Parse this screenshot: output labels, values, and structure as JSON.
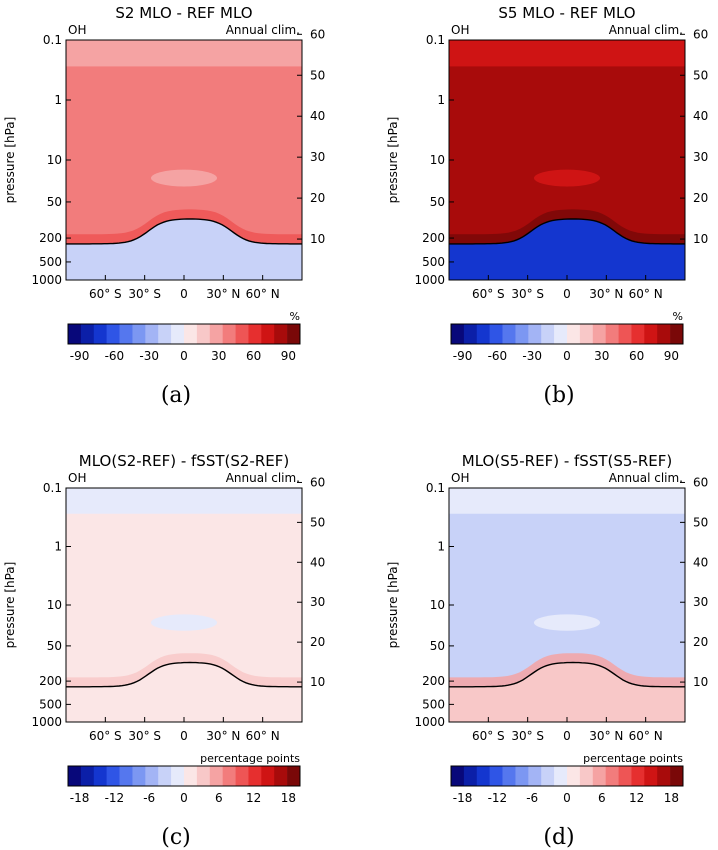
{
  "chart_data": [
    {
      "type": "heatmap",
      "panel_label": "(a)",
      "title": "S2 MLO - REF MLO",
      "species": "OH",
      "period": "Annual clim.",
      "ylabel": "pressure [hPa]",
      "x_ticks": [
        "60° S",
        "30° S",
        "0",
        "30° N",
        "60° N"
      ],
      "y_ticks": [
        "0.1",
        "1",
        "10",
        "50",
        "200",
        "500",
        "1000"
      ],
      "y2_ticks": [
        "60",
        "50",
        "40",
        "30",
        "20",
        "10"
      ],
      "colorbar": {
        "unit": "%",
        "range": [
          -100,
          100
        ],
        "ticks": [
          "-90",
          "-60",
          "-30",
          "0",
          "30",
          "60",
          "90"
        ]
      },
      "field": {
        "strat_level": 3,
        "upper_strat_level": 2,
        "lower_strat_band_level": 4,
        "trop_level": -2,
        "scale": 100
      }
    },
    {
      "type": "heatmap",
      "panel_label": "(b)",
      "title": "S5 MLO - REF MLO",
      "species": "OH",
      "period": "Annual clim.",
      "ylabel": "pressure [hPa]",
      "x_ticks": [
        "60° S",
        "30° S",
        "0",
        "30° N",
        "60° N"
      ],
      "y_ticks": [
        "0.1",
        "1",
        "10",
        "50",
        "200",
        "500",
        "1000"
      ],
      "y2_ticks": [
        "60",
        "50",
        "40",
        "30",
        "20",
        "10"
      ],
      "colorbar": {
        "unit": "%",
        "range": [
          -100,
          100
        ],
        "ticks": [
          "-90",
          "-60",
          "-30",
          "0",
          "30",
          "60",
          "90"
        ]
      },
      "field": {
        "strat_level": 7,
        "upper_strat_level": 6,
        "lower_strat_band_level": 8,
        "trop_level": -7,
        "scale": 100
      }
    },
    {
      "type": "heatmap",
      "panel_label": "(c)",
      "title": "MLO(S2-REF) - fSST(S2-REF)",
      "species": "OH",
      "period": "Annual clim.",
      "ylabel": "pressure [hPa]",
      "x_ticks": [
        "60° S",
        "30° S",
        "0",
        "30° N",
        "60° N"
      ],
      "y_ticks": [
        "0.1",
        "1",
        "10",
        "50",
        "200",
        "500",
        "1000"
      ],
      "y2_ticks": [
        "60",
        "50",
        "40",
        "30",
        "20",
        "10"
      ],
      "colorbar": {
        "unit": "percentage points",
        "range": [
          -20,
          20
        ],
        "ticks": [
          "-18",
          "-12",
          "-6",
          "0",
          "6",
          "12",
          "18"
        ]
      },
      "field": {
        "strat_level": 0,
        "upper_strat_level": -1,
        "lower_strat_band_level": 1,
        "trop_level": 0,
        "scale": 20
      }
    },
    {
      "type": "heatmap",
      "panel_label": "(d)",
      "title": "MLO(S5-REF) - fSST(S5-REF)",
      "species": "OH",
      "period": "Annual clim.",
      "ylabel": "pressure [hPa]",
      "x_ticks": [
        "60° S",
        "30° S",
        "0",
        "30° N",
        "60° N"
      ],
      "y_ticks": [
        "0.1",
        "1",
        "10",
        "50",
        "200",
        "500",
        "1000"
      ],
      "y2_ticks": [
        "60",
        "50",
        "40",
        "30",
        "20",
        "10"
      ],
      "colorbar": {
        "unit": "percentage points",
        "range": [
          -20,
          20
        ],
        "ticks": [
          "-18",
          "-12",
          "-6",
          "0",
          "6",
          "12",
          "18"
        ]
      },
      "field": {
        "strat_level": -2,
        "upper_strat_level": -1,
        "lower_strat_band_level": 2,
        "trop_level": 1,
        "scale": 20
      }
    }
  ],
  "colors": {
    "scale": [
      "#08087a",
      "#0b1fa8",
      "#1436cf",
      "#2f55e6",
      "#5577ee",
      "#7c97f2",
      "#a3b4f5",
      "#c8d2f8",
      "#e6eafb",
      "#fbe6e6",
      "#f8c8c8",
      "#f5a3a3",
      "#f27c7c",
      "#ee5555",
      "#e62f2f",
      "#cf1414",
      "#a80b0b",
      "#7a0808"
    ],
    "tropopause": "#000000"
  }
}
